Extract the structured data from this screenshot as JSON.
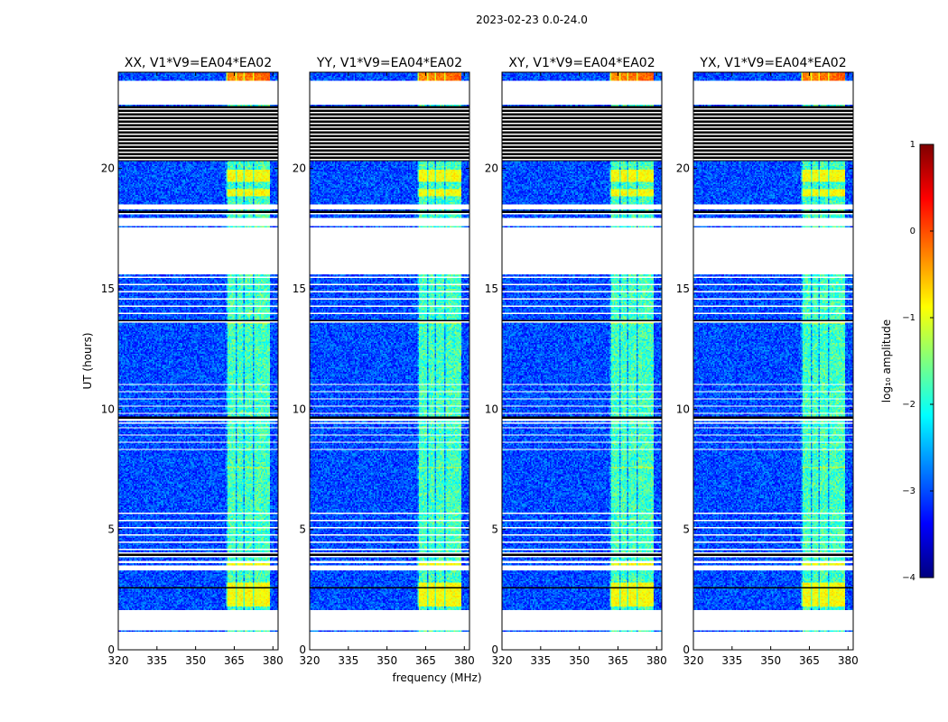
{
  "figure": {
    "suptitle": "2023-02-23 0.0-24.0"
  },
  "chart_data": {
    "type": "heatmap",
    "xlabel": "frequency (MHz)",
    "ylabel": "UT (hours)",
    "xlim": [
      320,
      382
    ],
    "ylim": [
      0,
      24
    ],
    "x_ticks": [
      320,
      335,
      350,
      365,
      380
    ],
    "y_ticks": [
      0,
      5,
      10,
      15,
      20
    ],
    "panels": [
      {
        "title": "XX, V1*V9=EA04*EA02"
      },
      {
        "title": "YY, V1*V9=EA04*EA02"
      },
      {
        "title": "XY, V1*V9=EA04*EA02"
      },
      {
        "title": "YX, V1*V9=EA04*EA02"
      }
    ],
    "colorbar": {
      "label": "log₁₀ amplitude",
      "range": [
        -4,
        1
      ],
      "ticks": [
        1,
        0,
        -1,
        -2,
        -3,
        -4
      ],
      "tick_labels": [
        "1",
        "0",
        "−1",
        "−2",
        "−3",
        "−4"
      ],
      "colormap": "jet",
      "colors": [
        "#00007f",
        "#0000ff",
        "#007fff",
        "#00ffff",
        "#7fff7f",
        "#ffff00",
        "#ff7f00",
        "#ff0000",
        "#7f0000"
      ]
    },
    "bright_band_mhz": [
      362,
      379
    ],
    "background_level": -3.0,
    "band_level": -1.8,
    "flagged_hours": [
      [
        0.05,
        0.75
      ],
      [
        0.82,
        1.65
      ],
      [
        3.32,
        3.48
      ],
      [
        3.62,
        3.7
      ],
      [
        9.52,
        9.62
      ],
      [
        15.62,
        17.55
      ],
      [
        17.62,
        17.95
      ],
      [
        18.3,
        18.5
      ],
      [
        22.65,
        23.65
      ]
    ],
    "dropout_hours": [
      [
        0.78,
        0.82
      ],
      [
        2.55,
        2.6
      ],
      [
        3.86,
        4.04
      ],
      [
        9.38,
        9.46
      ],
      [
        9.62,
        9.68
      ],
      [
        13.6,
        13.68
      ],
      [
        18.12,
        18.25
      ],
      [
        20.3,
        22.6
      ]
    ],
    "hot_block_hours": [
      [
        1.8,
        2.8
      ],
      [
        3.5,
        3.6
      ],
      [
        3.95,
        4.05
      ],
      [
        7.55,
        7.62
      ],
      [
        13.55,
        13.72
      ],
      [
        18.85,
        19.15
      ],
      [
        19.45,
        19.95
      ],
      [
        23.65,
        24.0
      ]
    ]
  }
}
